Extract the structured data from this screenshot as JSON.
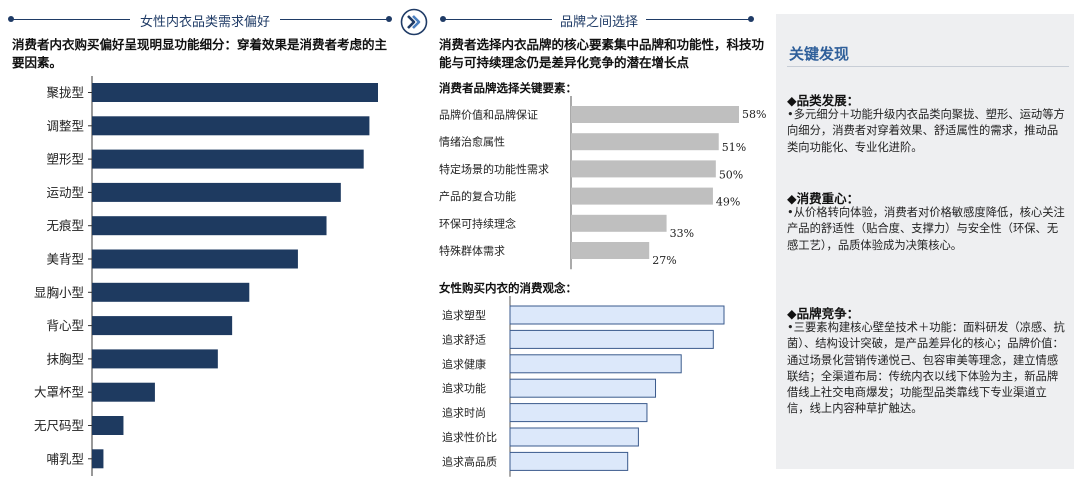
{
  "left": {
    "title": "女性内衣品类需求偏好",
    "subtitle": "消费者内衣购买偏好呈现明显功能细分：穿着效果是消费者考虑的主要因素。",
    "chart_data": {
      "type": "bar",
      "orientation": "horizontal",
      "categories": [
        "聚拢型",
        "调整型",
        "塑形型",
        "运动型",
        "无痕型",
        "美背型",
        "显胸小型",
        "背心型",
        "抹胸型",
        "大罩杯型",
        "无尺码型",
        "哺乳型"
      ],
      "values": [
        100,
        97,
        95,
        87,
        82,
        72,
        55,
        49,
        44,
        22,
        11,
        4
      ],
      "color": "#1e3a60",
      "grid": false
    }
  },
  "middle": {
    "title": "品牌之间选择",
    "subtitle": "消费者选择内衣品牌的核心要素集中品牌和功能性，科技功能与可持续理念仍是差异化竞争的潜在增长点",
    "chart1": {
      "heading": "消费者品牌选择关键要素：",
      "chart_data": {
        "type": "bar",
        "orientation": "horizontal",
        "categories": [
          "品牌价值和品牌保证",
          "情绪治愈属性",
          "特定场景的功能性需求",
          "产品的复合功能",
          "环保可持续理念",
          "特殊群体需求"
        ],
        "values": [
          58,
          51,
          50,
          49,
          33,
          27
        ],
        "labels": [
          "58%",
          "51%",
          "50%",
          "49%",
          "33%",
          "27%"
        ],
        "unit": "%",
        "color": "#bfbfbf",
        "grid": false
      }
    },
    "chart2": {
      "heading": "女性购买内衣的消费观念：",
      "chart_data": {
        "type": "bar",
        "orientation": "horizontal",
        "categories": [
          "追求塑型",
          "追求舒适",
          "追求健康",
          "追求功能",
          "追求时尚",
          "追求性价比",
          "追求高品质"
        ],
        "values": [
          100,
          95,
          80,
          68,
          64,
          60,
          55
        ],
        "color": "#dce8fa",
        "border_color": "#3a5a8c",
        "grid": false
      }
    }
  },
  "right": {
    "title": "关键发现",
    "sections": [
      {
        "head": "品类发展：",
        "body": "多元细分＋功能升级内衣品类向聚拢、塑形、运动等方向细分，消费者对穿着效果、舒适属性的需求，推动品类向功能化、专业化进阶。"
      },
      {
        "head": "消费重心：",
        "body": "从价格转向体验，消费者对价格敏感度降低，核心关注产品的舒适性（贴合度、支撑力）与安全性（环保、无感工艺），品质体验成为决策核心。"
      },
      {
        "head": "品牌竞争：",
        "body": "三要素构建核心壁垒技术＋功能：面料研发（凉感、抗菌）、结构设计突破，是产品差异化的核心；品牌价值：通过场景化营销传递悦己、包容审美等理念，建立情感联结；全渠道布局：传统内衣以线下体验为主，新品牌借线上社交电商爆发；功能型品类靠线下专业渠道立信，线上内容种草扩触达。"
      }
    ]
  }
}
